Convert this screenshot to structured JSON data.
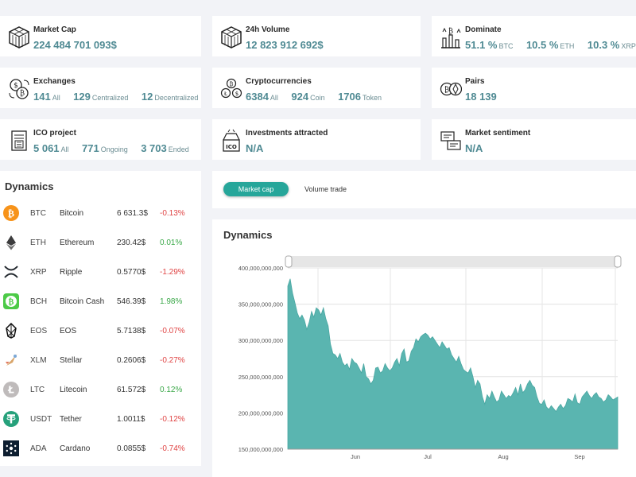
{
  "stats": {
    "market_cap": {
      "title": "Market Cap",
      "value": "224 484 701 093$"
    },
    "volume_24h": {
      "title": "24h Volume",
      "value": "12 823 912 692$"
    },
    "dominate": {
      "title": "Dominate",
      "items": [
        {
          "value": "51.1 %",
          "unit": "BTC"
        },
        {
          "value": "10.5 %",
          "unit": "ETH"
        },
        {
          "value": "10.3 %",
          "unit": "XRP"
        }
      ]
    },
    "exchanges": {
      "title": "Exchanges",
      "items": [
        {
          "value": "141",
          "unit": "All"
        },
        {
          "value": "129",
          "unit": "Centralized"
        },
        {
          "value": "12",
          "unit": "Decentralized"
        }
      ]
    },
    "cryptocurrencies": {
      "title": "Cryptocurrencies",
      "items": [
        {
          "value": "6384",
          "unit": "All"
        },
        {
          "value": "924",
          "unit": "Coin"
        },
        {
          "value": "1706",
          "unit": "Token"
        }
      ]
    },
    "pairs": {
      "title": "Pairs",
      "value": "18 139"
    },
    "ico": {
      "title": "ICO project",
      "items": [
        {
          "value": "5 061",
          "unit": "All"
        },
        {
          "value": "771",
          "unit": "Ongoing"
        },
        {
          "value": "3 703",
          "unit": "Ended"
        }
      ]
    },
    "investments": {
      "title": "Investments attracted",
      "value": "N/A"
    },
    "sentiment": {
      "title": "Market sentiment",
      "value": "N/A"
    }
  },
  "dynamics_list": {
    "title": "Dynamics",
    "rows": [
      {
        "icon": "bitcoin-icon",
        "symbol": "BTC",
        "name": "Bitcoin",
        "price": "6 631.3$",
        "change": "-0.13%",
        "dir": "neg"
      },
      {
        "icon": "ethereum-icon",
        "symbol": "ETH",
        "name": "Ethereum",
        "price": "230.42$",
        "change": "0.01%",
        "dir": "pos"
      },
      {
        "icon": "ripple-icon",
        "symbol": "XRP",
        "name": "Ripple",
        "price": "0.5770$",
        "change": "-1.29%",
        "dir": "neg"
      },
      {
        "icon": "bitcoin-cash-icon",
        "symbol": "BCH",
        "name": "Bitcoin Cash",
        "price": "546.39$",
        "change": "1.98%",
        "dir": "pos"
      },
      {
        "icon": "eos-icon",
        "symbol": "EOS",
        "name": "EOS",
        "price": "5.7138$",
        "change": "-0.07%",
        "dir": "neg"
      },
      {
        "icon": "stellar-icon",
        "symbol": "XLM",
        "name": "Stellar",
        "price": "0.2606$",
        "change": "-0.27%",
        "dir": "neg"
      },
      {
        "icon": "litecoin-icon",
        "symbol": "LTC",
        "name": "Litecoin",
        "price": "61.572$",
        "change": "0.12%",
        "dir": "pos"
      },
      {
        "icon": "tether-icon",
        "symbol": "USDT",
        "name": "Tether",
        "price": "1.0011$",
        "change": "-0.12%",
        "dir": "neg"
      },
      {
        "icon": "cardano-icon",
        "symbol": "ADA",
        "name": "Cardano",
        "price": "0.0855$",
        "change": "-0.74%",
        "dir": "neg"
      }
    ]
  },
  "tabs": {
    "active": "Market cap",
    "inactive": "Volume trade"
  },
  "colors": {
    "accent": "#26a69a",
    "area": "#5ab5b0",
    "negative": "#e04545",
    "positive": "#3aa848"
  },
  "chart_data": {
    "type": "area",
    "title": "Dynamics",
    "xlabel": "",
    "ylabel": "",
    "ylim": [
      150000000000,
      400000000000
    ],
    "yticks": [
      "150,000,000,000",
      "200,000,000,000",
      "250,000,000,000",
      "300,000,000,000",
      "350,000,000,000",
      "400,000,000,000"
    ],
    "xticks": [
      "Jun",
      "Jul",
      "Aug",
      "Sep"
    ],
    "series": [
      {
        "name": "Market cap",
        "x": [
          0,
          1,
          2,
          3,
          4,
          5,
          6,
          7,
          8,
          9,
          10,
          11,
          12,
          13,
          14,
          15,
          16,
          17,
          18,
          19,
          20,
          21,
          22,
          23,
          24,
          25,
          26,
          27,
          28,
          29,
          30,
          31,
          32,
          33,
          34,
          35,
          36,
          37,
          38,
          39,
          40,
          41,
          42,
          43,
          44,
          45,
          46,
          47,
          48,
          49,
          50,
          51,
          52,
          53,
          54,
          55,
          56,
          57,
          58,
          59,
          60,
          61,
          62,
          63,
          64,
          65,
          66,
          67,
          68,
          69,
          70,
          71,
          72,
          73,
          74,
          75,
          76,
          77,
          78,
          79,
          80,
          81,
          82,
          83,
          84,
          85,
          86,
          87,
          88,
          89,
          90,
          91,
          92,
          93,
          94,
          95,
          96,
          97,
          98,
          99,
          100,
          101,
          102,
          103,
          104,
          105,
          106,
          107,
          108,
          109,
          110,
          111,
          112,
          113,
          114,
          115,
          116,
          117,
          118,
          119,
          120,
          121,
          122,
          123,
          124,
          125,
          126,
          127,
          128,
          129,
          130,
          131,
          132,
          133,
          134,
          135,
          136,
          137,
          138,
          139
        ],
        "values": [
          375,
          385,
          365,
          352,
          338,
          330,
          335,
          328,
          315,
          325,
          340,
          332,
          345,
          342,
          335,
          345,
          330,
          320,
          295,
          282,
          280,
          275,
          282,
          270,
          265,
          268,
          260,
          275,
          270,
          268,
          262,
          255,
          268,
          250,
          247,
          240,
          245,
          262,
          263,
          255,
          258,
          268,
          262,
          258,
          262,
          270,
          275,
          265,
          282,
          288,
          270,
          272,
          285,
          290,
          302,
          298,
          305,
          308,
          310,
          307,
          302,
          305,
          300,
          295,
          290,
          298,
          293,
          288,
          290,
          280,
          275,
          270,
          278,
          268,
          260,
          257,
          255,
          262,
          250,
          235,
          245,
          240,
          222,
          212,
          225,
          220,
          230,
          222,
          215,
          218,
          230,
          225,
          220,
          224,
          222,
          228,
          235,
          225,
          240,
          228,
          232,
          240,
          245,
          238,
          235,
          222,
          213,
          212,
          218,
          208,
          205,
          210,
          206,
          202,
          208,
          212,
          206,
          210,
          220,
          218,
          215,
          226,
          214,
          212,
          222,
          226,
          230,
          224,
          220,
          225,
          228,
          222,
          220,
          215,
          218,
          225,
          222,
          218,
          220,
          222
        ]
      }
    ]
  }
}
